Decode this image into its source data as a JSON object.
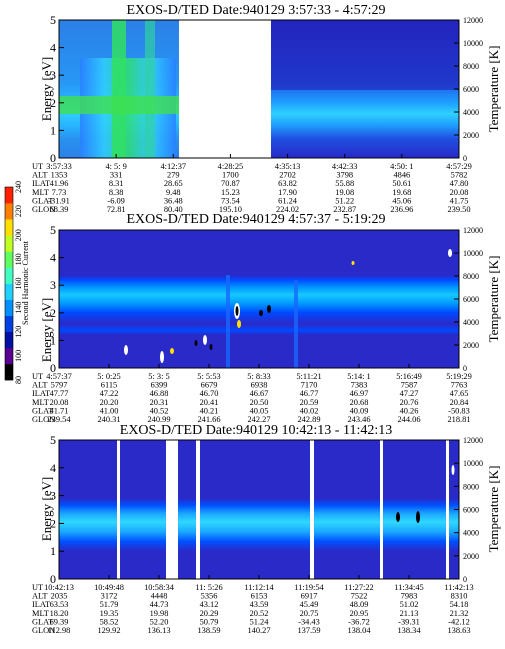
{
  "colorbar": {
    "label": "Second Harmonic Current",
    "ticks": [
      "80",
      "100",
      "120",
      "140",
      "160",
      "180",
      "200",
      "220",
      "240"
    ],
    "colors": [
      "#000000",
      "#5a0090",
      "#0010a0",
      "#0040e0",
      "#0090ff",
      "#20d0ff",
      "#40ffc0",
      "#60ff60",
      "#c0ff20",
      "#ffe000",
      "#ff8000",
      "#ff2000"
    ]
  },
  "colors": {
    "background": "#2828c8",
    "band_outer": "#0050ff",
    "band_mid": "#0090ff",
    "band_inner": "#30d0ff",
    "green": "#30e060"
  },
  "chart_data": [
    {
      "type": "heatmap",
      "title": "EXOS-D/TED   Date:940129   3:57:33 - 4:57:29",
      "ylabel": "Energy [eV]",
      "y2label": "Temperature [K]",
      "ylim": [
        0,
        5
      ],
      "y2lim": [
        0,
        12000
      ],
      "yticks": [
        "0",
        "1",
        "2",
        "3",
        "4",
        "5"
      ],
      "y2ticks": [
        "0",
        "2000",
        "4000",
        "6000",
        "8000",
        "10000",
        "12000"
      ],
      "data_gap": [
        "4:12:37",
        "4:28:25"
      ],
      "table": {
        "labels": [
          "UT",
          "ALT",
          "ILAT",
          "MLT",
          "GLAT",
          "GLON"
        ],
        "columns": [
          [
            "3:57:33",
            "1353",
            "41.96",
            "7.73",
            "-31.91",
            "68.39"
          ],
          [
            "4: 5: 9",
            "331",
            "8.31",
            "8.38",
            "-6.09",
            "72.81"
          ],
          [
            "4:12:37",
            "279",
            "28.65",
            "9.48",
            "36.48",
            "80.40"
          ],
          [
            "4:28:25",
            "1700",
            "70.87",
            "15.23",
            "73.54",
            "195.10"
          ],
          [
            "4:35:13",
            "2702",
            "63.82",
            "17.90",
            "61.24",
            "224.02"
          ],
          [
            "4:42:33",
            "3798",
            "55.88",
            "19.08",
            "51.22",
            "232.87"
          ],
          [
            "4:50: 1",
            "4846",
            "50.61",
            "19.68",
            "45.06",
            "236.96"
          ],
          [
            "4:57:29",
            "5782",
            "47.80",
            "20.08",
            "41.75",
            "239.50"
          ]
        ]
      }
    },
    {
      "type": "heatmap",
      "title": "EXOS-D/TED   Date:940129   4:57:37 - 5:19:29",
      "ylabel": "Energy [eV]",
      "y2label": "Temperature [K]",
      "ylim": [
        0,
        5
      ],
      "y2lim": [
        0,
        12000
      ],
      "yticks": [
        "0",
        "1",
        "2",
        "3",
        "4",
        "5"
      ],
      "y2ticks": [
        "0",
        "2000",
        "4000",
        "6000",
        "8000",
        "10000",
        "12000"
      ],
      "table": {
        "labels": [
          "UT",
          "ALT",
          "ILAT",
          "MLT",
          "GLAT",
          "GLON"
        ],
        "columns": [
          [
            "4:57:37",
            "5797",
            "47.77",
            "20.08",
            "41.71",
            "239.54"
          ],
          [
            "5: 0:25",
            "6115",
            "47.22",
            "20.20",
            "41.00",
            "240.31"
          ],
          [
            "5: 3: 5",
            "6399",
            "46.88",
            "20.31",
            "40.52",
            "240.99"
          ],
          [
            "5: 5:53",
            "6679",
            "46.70",
            "20.41",
            "40.21",
            "241.66"
          ],
          [
            "5: 8:33",
            "6938",
            "46.67",
            "20.50",
            "40.05",
            "242.27"
          ],
          [
            "5:11:21",
            "7170",
            "46.77",
            "20.59",
            "40.02",
            "242.89"
          ],
          [
            "5:14: 1",
            "7383",
            "46.97",
            "20.68",
            "40.09",
            "243.46"
          ],
          [
            "5:16:49",
            "7587",
            "47.27",
            "20.76",
            "40.26",
            "244.06"
          ],
          [
            "5:19:29",
            "7763",
            "47.65",
            "20.84",
            "-50.83",
            "218.81"
          ]
        ]
      }
    },
    {
      "type": "heatmap",
      "title": "EXOS-D/TED   Date:940129   10:42:13 - 11:42:13",
      "ylabel": "Energy [eV]",
      "y2label": "Temperature [K]",
      "ylim": [
        0,
        5
      ],
      "y2lim": [
        0,
        12000
      ],
      "yticks": [
        "0",
        "1",
        "2",
        "3",
        "4",
        "5"
      ],
      "y2ticks": [
        "0",
        "2000",
        "4000",
        "6000",
        "8000",
        "10000",
        "12000"
      ],
      "table": {
        "labels": [
          "UT",
          "ALT",
          "ILAT",
          "MLT",
          "GLAT",
          "GLON"
        ],
        "columns": [
          [
            "10:42:13",
            "2035",
            "63.53",
            "18.20",
            "69.39",
            "112.98"
          ],
          [
            "10:49:48",
            "3172",
            "51.79",
            "19.35",
            "58.52",
            "129.92"
          ],
          [
            "10:58:34",
            "4448",
            "44.73",
            "19.98",
            "52.20",
            "136.13"
          ],
          [
            "11: 5:26",
            "5356",
            "43.12",
            "20.29",
            "50.79",
            "138.59"
          ],
          [
            "11:12:14",
            "6153",
            "43.59",
            "20.52",
            "51.24",
            "140.27"
          ],
          [
            "11:19:54",
            "6917",
            "45.49",
            "20.75",
            "-34.43",
            "137.59"
          ],
          [
            "11:27:22",
            "7522",
            "48.09",
            "20.95",
            "-36.72",
            "138.04"
          ],
          [
            "11:34:45",
            "7983",
            "51.02",
            "21.13",
            "-39.31",
            "138.34"
          ],
          [
            "11:42:13",
            "8310",
            "54.18",
            "21.32",
            "-42.12",
            "138.63"
          ]
        ]
      }
    }
  ]
}
